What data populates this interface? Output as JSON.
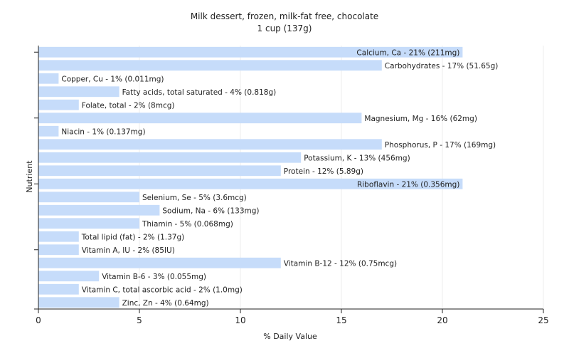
{
  "chart_data": {
    "type": "bar",
    "orientation": "horizontal",
    "title": "Milk dessert, frozen, milk-fat free, chocolate",
    "subtitle": "1 cup (137g)",
    "xlabel": "% Daily Value",
    "ylabel": "Nutrient",
    "xlim": [
      0,
      25
    ],
    "xticks": [
      0,
      5,
      10,
      15,
      20,
      25
    ],
    "grid": true,
    "bar_color": "#c6dcfa",
    "categories": [
      "Calcium, Ca",
      "Carbohydrates",
      "Copper, Cu",
      "Fatty acids, total saturated",
      "Folate, total",
      "Magnesium, Mg",
      "Niacin",
      "Phosphorus, P",
      "Potassium, K",
      "Protein",
      "Riboflavin",
      "Selenium, Se",
      "Sodium, Na",
      "Thiamin",
      "Total lipid (fat)",
      "Vitamin A, IU",
      "Vitamin B-12",
      "Vitamin B-6",
      "Vitamin C, total ascorbic acid",
      "Zinc, Zn"
    ],
    "values": [
      21,
      17,
      1,
      4,
      2,
      16,
      1,
      17,
      13,
      12,
      21,
      5,
      6,
      5,
      2,
      2,
      12,
      3,
      2,
      4
    ],
    "labels": [
      "Calcium, Ca - 21% (211mg)",
      "Carbohydrates - 17% (51.65g)",
      "Copper, Cu - 1% (0.011mg)",
      "Fatty acids, total saturated - 4% (0.818g)",
      "Folate, total - 2% (8mcg)",
      "Magnesium, Mg - 16% (62mg)",
      "Niacin - 1% (0.137mg)",
      "Phosphorus, P - 17% (169mg)",
      "Potassium, K - 13% (456mg)",
      "Protein - 12% (5.89g)",
      "Riboflavin - 21% (0.356mg)",
      "Selenium, Se - 5% (3.6mcg)",
      "Sodium, Na - 6% (133mg)",
      "Thiamin - 5% (0.068mg)",
      "Total lipid (fat) - 2% (1.37g)",
      "Vitamin A, IU - 2% (85IU)",
      "Vitamin B-12 - 12% (0.75mcg)",
      "Vitamin B-6 - 3% (0.055mg)",
      "Vitamin C, total ascorbic acid - 2% (1.0mg)",
      "Zinc, Zn - 4% (0.64mg)"
    ]
  }
}
